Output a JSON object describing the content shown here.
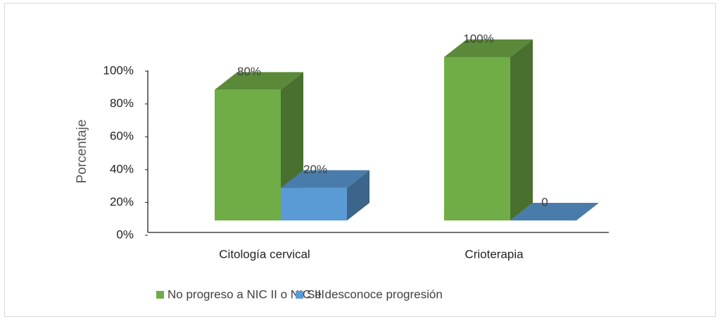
{
  "chart_data": {
    "type": "bar3d",
    "y_label": "Porcentaje",
    "categories": [
      "Citología cervical",
      "Crioterapia"
    ],
    "series": [
      {
        "name": "No progreso a NIC II o NIC III",
        "color": "#70ad47",
        "values": [
          80,
          100
        ],
        "value_labels": [
          "80%",
          "100%"
        ]
      },
      {
        "name": "Se desconoce progresión",
        "color": "#5b9bd5",
        "values": [
          20,
          0
        ],
        "value_labels": [
          "20%",
          "0"
        ]
      }
    ],
    "ylim": [
      0,
      100
    ],
    "yticks": [
      {
        "value": 0,
        "label": "0%"
      },
      {
        "value": 20,
        "label": "20%"
      },
      {
        "value": 40,
        "label": "40%"
      },
      {
        "value": 60,
        "label": "60%"
      },
      {
        "value": 80,
        "label": "80%"
      },
      {
        "value": 100,
        "label": "100%"
      }
    ],
    "legend": "bottom"
  }
}
